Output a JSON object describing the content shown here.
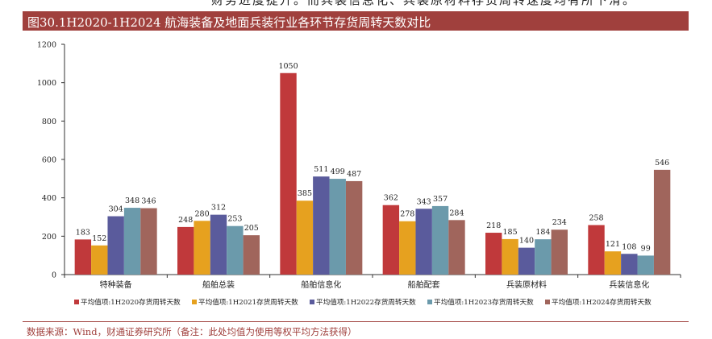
{
  "header_cut_text": "财务进度提升。而兵装信息化、兵装原材料存货周转速度均有所下滑。",
  "title": "图30.1H2020-1H2024 航海装备及地面兵装行业各环节存货周转天数对比",
  "source": "数据来源：Wind，财通证券研究所（备注：此处均值为使用等权平均方法获得）",
  "colors": {
    "title_bar": "#a0403d",
    "source_text": "#a0403d"
  },
  "chart_data": {
    "type": "bar",
    "categories": [
      "特种装备",
      "船舶总装",
      "船舶信息化",
      "船舶配套",
      "兵装原材料",
      "兵装信息化"
    ],
    "series": [
      {
        "name": "平均值项:1H2020存货周转天数",
        "color": "#c0393b",
        "values": [
          183,
          248,
          1050,
          362,
          218,
          258
        ]
      },
      {
        "name": "平均值项:1H2021存货周转天数",
        "color": "#e6a11f",
        "values": [
          152,
          280,
          385,
          278,
          185,
          121
        ]
      },
      {
        "name": "平均值项:1H2022存货周转天数",
        "color": "#5a5b9c",
        "values": [
          304,
          312,
          511,
          343,
          140,
          108
        ]
      },
      {
        "name": "平均值项:1H2023存货周转天数",
        "color": "#6b9aab",
        "values": [
          348,
          253,
          499,
          357,
          184,
          99
        ]
      },
      {
        "name": "平均值项:1H2024存货周转天数",
        "color": "#a0655c",
        "values": [
          346,
          205,
          487,
          284,
          234,
          546
        ]
      }
    ],
    "yticks": [
      0,
      200,
      400,
      600,
      800,
      1000,
      1200
    ],
    "ylim": [
      0,
      1200
    ],
    "legend_position": "bottom",
    "grid": false
  }
}
